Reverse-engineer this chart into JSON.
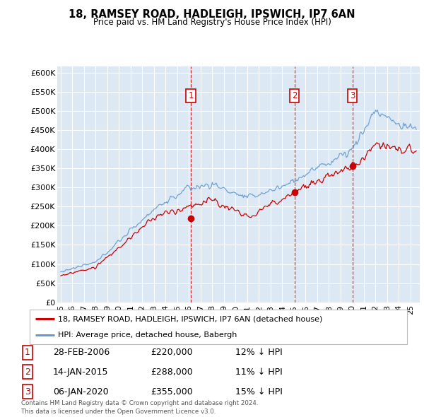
{
  "title1": "18, RAMSEY ROAD, HADLEIGH, IPSWICH, IP7 6AN",
  "title2": "Price paid vs. HM Land Registry's House Price Index (HPI)",
  "ylabel_ticks": [
    "£0",
    "£50K",
    "£100K",
    "£150K",
    "£200K",
    "£250K",
    "£300K",
    "£350K",
    "£400K",
    "£450K",
    "£500K",
    "£550K",
    "£600K"
  ],
  "ytick_values": [
    0,
    50000,
    100000,
    150000,
    200000,
    250000,
    300000,
    350000,
    400000,
    450000,
    500000,
    550000,
    600000
  ],
  "ylim": [
    0,
    615000
  ],
  "background_color": "#dce9f5",
  "grid_color": "#ffffff",
  "legend_label_red": "18, RAMSEY ROAD, HADLEIGH, IPSWICH, IP7 6AN (detached house)",
  "legend_label_blue": "HPI: Average price, detached house, Babergh",
  "transactions": [
    {
      "num": 1,
      "x": 2006.16,
      "price": 220000,
      "label": "28-FEB-2006",
      "amount": "£220,000",
      "pct": "12% ↓ HPI"
    },
    {
      "num": 2,
      "x": 2015.04,
      "price": 288000,
      "label": "14-JAN-2015",
      "amount": "£288,000",
      "pct": "11% ↓ HPI"
    },
    {
      "num": 3,
      "x": 2020.02,
      "price": 355000,
      "label": "06-JAN-2020",
      "amount": "£355,000",
      "pct": "15% ↓ HPI"
    }
  ],
  "footer": "Contains HM Land Registry data © Crown copyright and database right 2024.\nThis data is licensed under the Open Government Licence v3.0.",
  "red_color": "#cc0000",
  "blue_color": "#6699cc",
  "vline_color": "#cc0000",
  "box_color": "#cc0000",
  "xlim_start": 1994.7,
  "xlim_end": 2025.8,
  "xtick_years": [
    1995,
    1996,
    1997,
    1998,
    1999,
    2000,
    2001,
    2002,
    2003,
    2004,
    2005,
    2006,
    2007,
    2008,
    2009,
    2010,
    2011,
    2012,
    2013,
    2014,
    2015,
    2016,
    2017,
    2018,
    2019,
    2020,
    2021,
    2022,
    2023,
    2024,
    2025
  ]
}
